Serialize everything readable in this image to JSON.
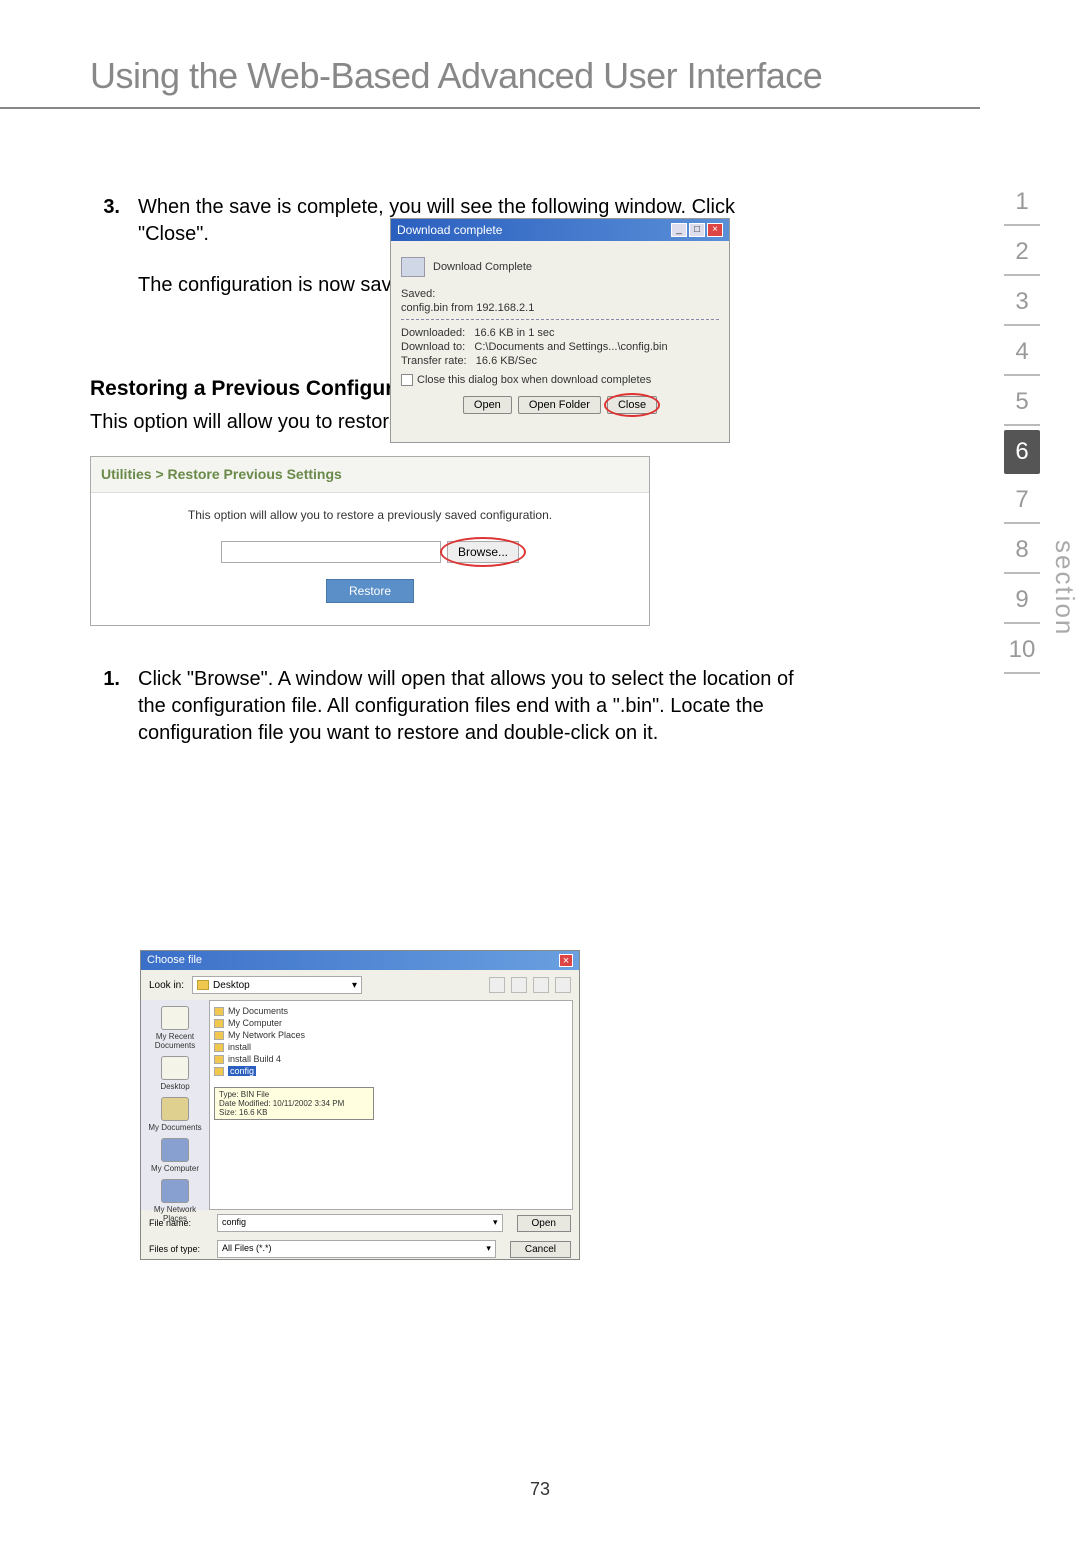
{
  "page": {
    "title": "Using the Web-Based Advanced User Interface",
    "number": "73"
  },
  "step3": {
    "num": "3.",
    "p1": "When the save is complete, you will see the following window. Click \"Close\".",
    "p2": "The configuration is now saved."
  },
  "download_dialog": {
    "title": "Download complete",
    "header": "Download Complete",
    "saved_label": "Saved:",
    "saved_text": "config.bin from 192.168.2.1",
    "dl_label": "Downloaded:",
    "dl_val": "16.6 KB in 1 sec",
    "to_label": "Download to:",
    "to_val": "C:\\Documents and Settings...\\config.bin",
    "rate_label": "Transfer rate:",
    "rate_val": "16.6 KB/Sec",
    "checkbox": "Close this dialog box when download completes",
    "btn_open": "Open",
    "btn_folder": "Open Folder",
    "btn_close": "Close"
  },
  "restore": {
    "heading": "Restoring a Previous Configuration",
    "desc": "This option will allow you to restore a previously saved configuration.",
    "box_title": "Utilities > Restore Previous Settings",
    "box_desc": "This option will allow you to restore a previously saved configuration.",
    "btn_browse": "Browse...",
    "btn_restore": "Restore"
  },
  "step1": {
    "num": "1.",
    "text": "Click \"Browse\". A window will open that allows you to select the location of the configuration file. All configuration files end with a \".bin\". Locate the configuration file you want to restore and double-click on it."
  },
  "choose": {
    "title": "Choose file",
    "lookin_label": "Look in:",
    "lookin_value": "Desktop",
    "sidebar": {
      "recent": "My Recent Documents",
      "desktop": "Desktop",
      "mydocs": "My Documents",
      "mycomp": "My Computer",
      "network": "My Network Places"
    },
    "files": {
      "f1": "My Documents",
      "f2": "My Computer",
      "f3": "My Network Places",
      "f4": "install",
      "f5": "install Build 4",
      "selected": "config"
    },
    "tooltip": {
      "l1": "Type: BIN File",
      "l2": "Date Modified: 10/11/2002 3:34 PM",
      "l3": "Size: 16.6 KB"
    },
    "filename_label": "File name:",
    "filename_value": "config",
    "filetype_label": "Files of type:",
    "filetype_value": "All Files (*.*)",
    "btn_open": "Open",
    "btn_cancel": "Cancel"
  },
  "nav": {
    "items": [
      "1",
      "2",
      "3",
      "4",
      "5",
      "6",
      "7",
      "8",
      "9",
      "10"
    ],
    "active_index": 5,
    "section_label": "section"
  },
  "colors": {
    "title_gray": "#888888",
    "nav_gray": "#999999",
    "nav_active_bg": "#555555",
    "win_blue": "#3a6fc8",
    "close_red": "#d44444",
    "circle_red": "#d33333",
    "olive": "#6a8a4a",
    "restore_blue": "#5a8fc8"
  }
}
